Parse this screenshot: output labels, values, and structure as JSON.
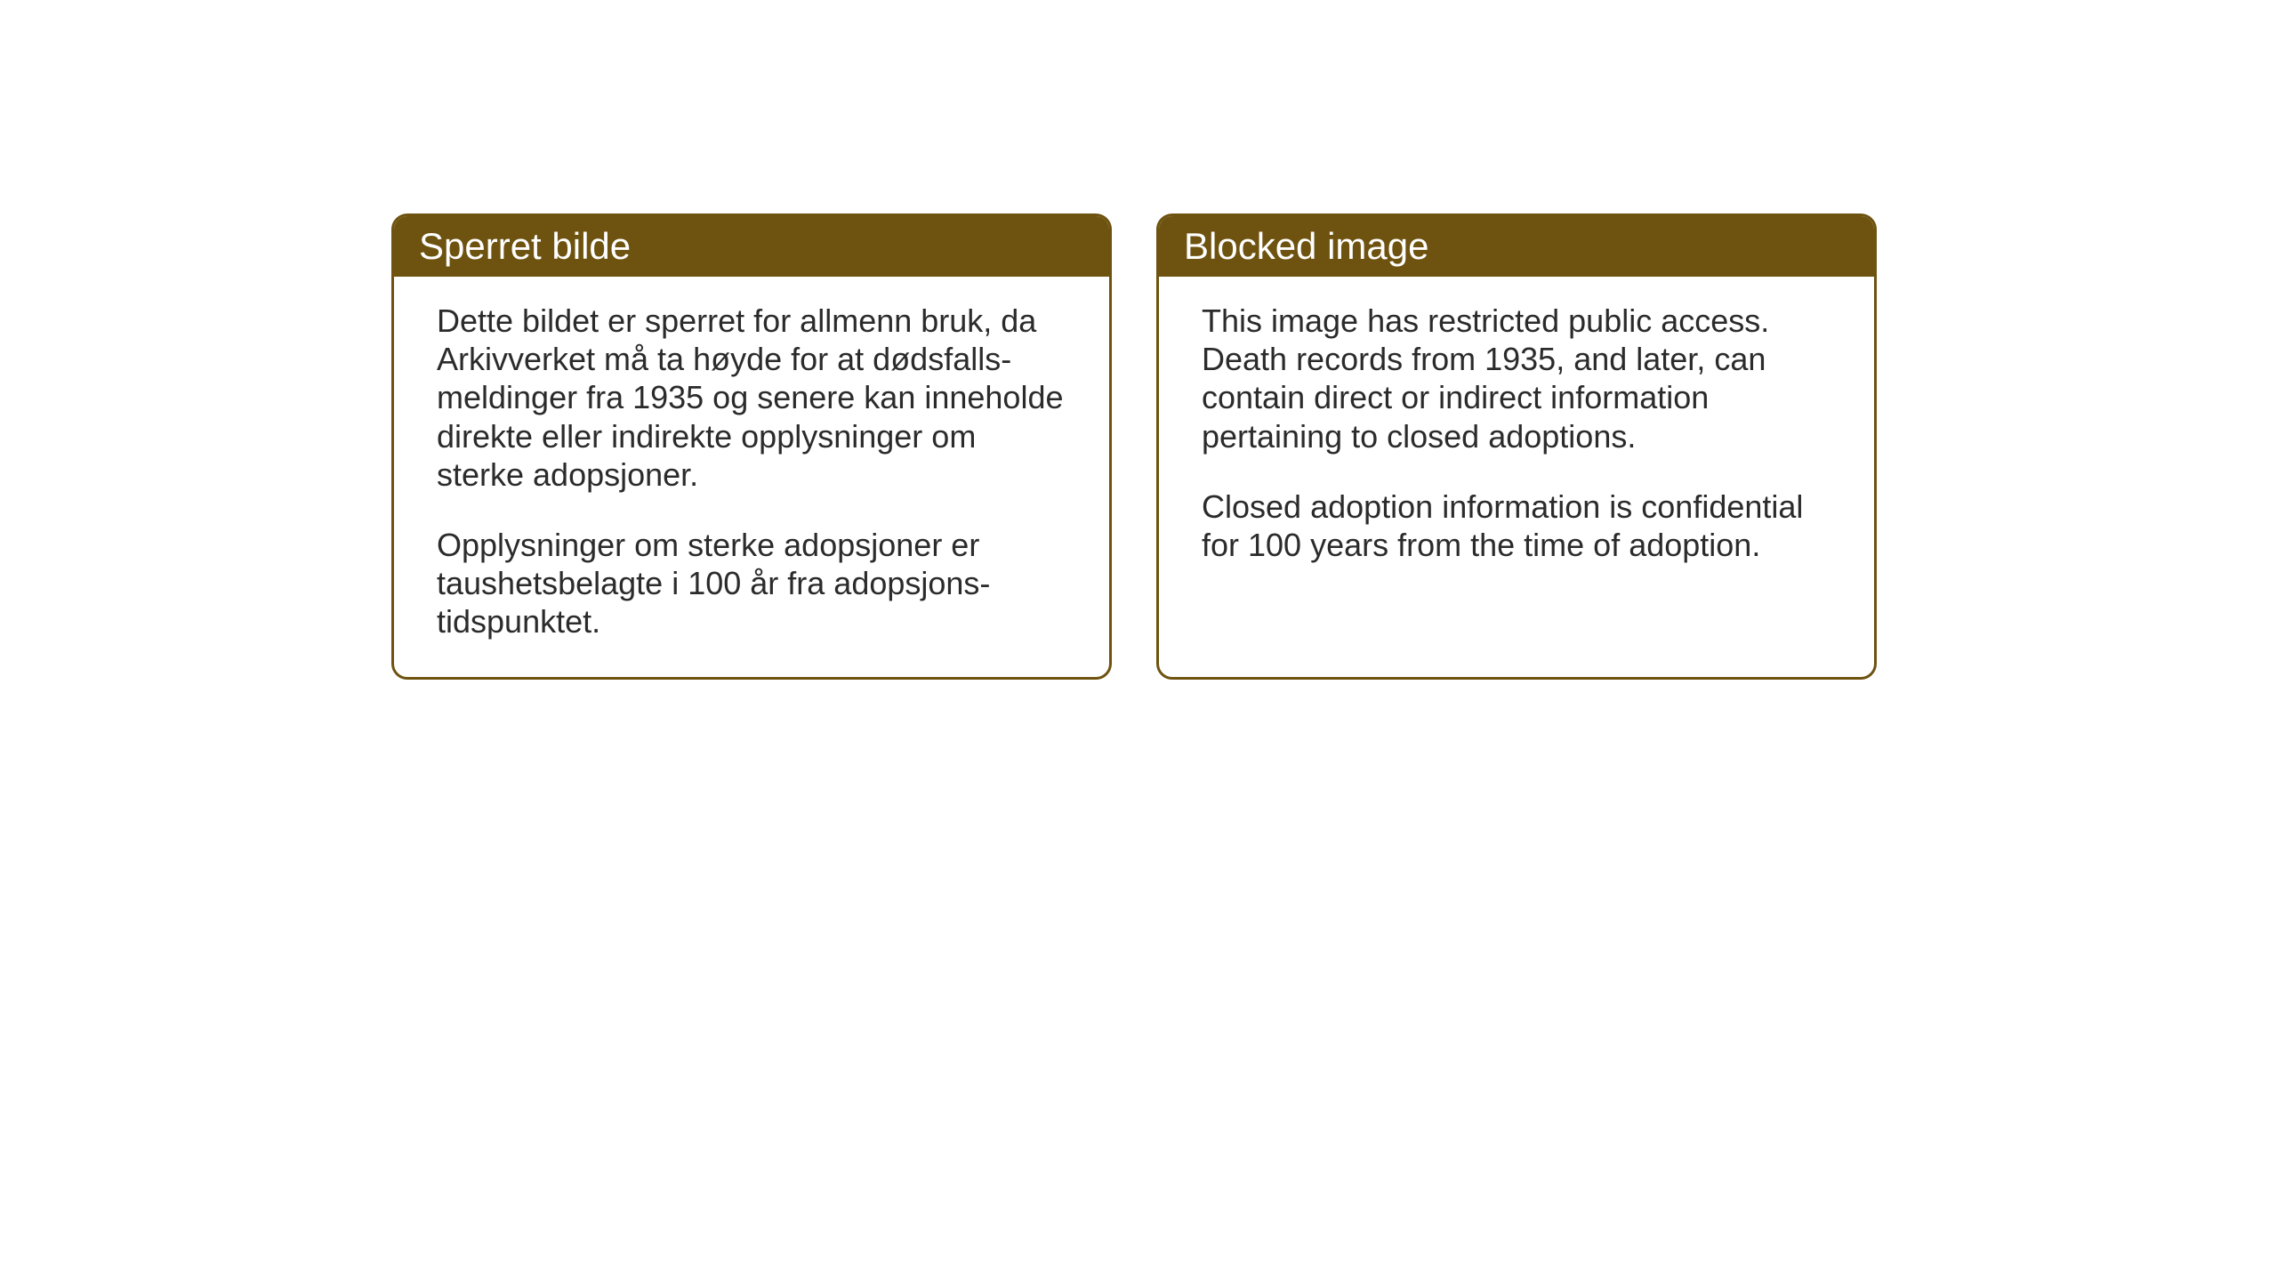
{
  "cards": {
    "norwegian": {
      "title": "Sperret bilde",
      "paragraph1": "Dette bildet er sperret for allmenn bruk, da Arkivverket må ta høyde for at dødsfalls-meldinger fra 1935 og senere kan inneholde direkte eller indirekte opplysninger om sterke adopsjoner.",
      "paragraph2": "Opplysninger om sterke adopsjoner er taushetsbelagte i 100 år fra adopsjons-tidspunktet."
    },
    "english": {
      "title": "Blocked image",
      "paragraph1": "This image has restricted public access. Death records from 1935, and later, can contain direct or indirect information pertaining to closed adoptions.",
      "paragraph2": "Closed adoption information is confidential for 100 years from the time of adoption."
    }
  },
  "styling": {
    "header_background_color": "#6e5310",
    "header_text_color": "#ffffff",
    "border_color": "#6e5310",
    "body_text_color": "#2b2b2b",
    "card_background_color": "#ffffff",
    "page_background_color": "#ffffff",
    "header_fontsize": 42,
    "body_fontsize": 36,
    "border_radius": 18,
    "border_width": 3
  }
}
